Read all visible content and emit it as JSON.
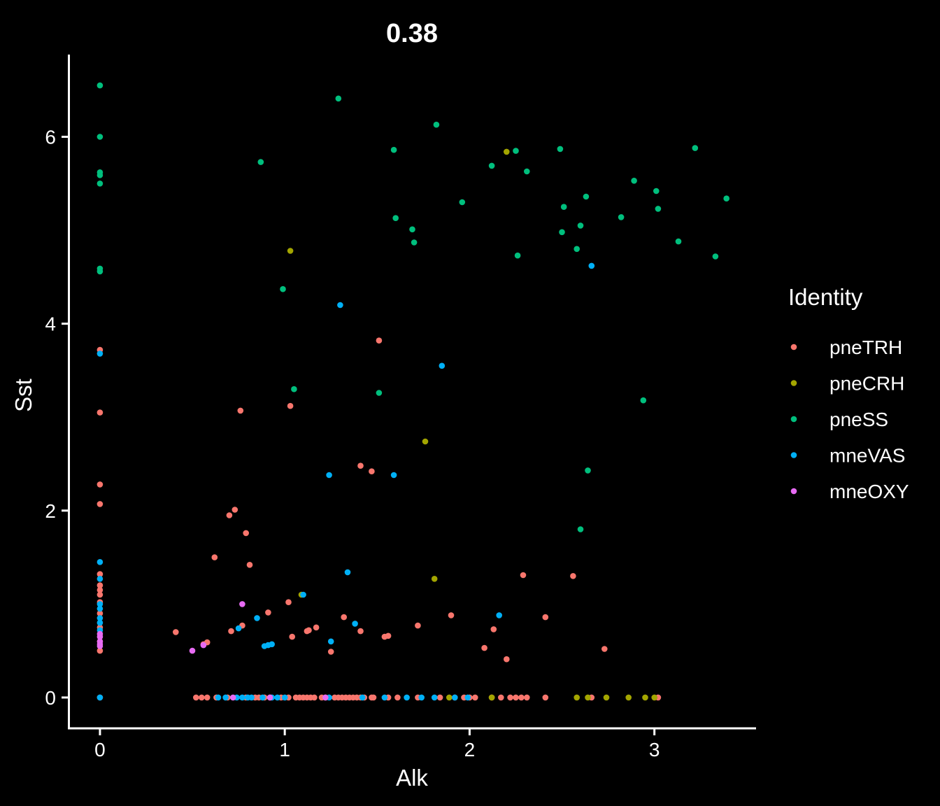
{
  "chart_data": {
    "type": "scatter",
    "title": "0.38",
    "xlabel": "Alk",
    "ylabel": "Sst",
    "xlim": [
      -0.17,
      3.55
    ],
    "ylim": [
      -0.33,
      6.88
    ],
    "xticks": [
      0,
      1,
      2,
      3
    ],
    "yticks": [
      0,
      2,
      4,
      6
    ],
    "grid": false,
    "legend": {
      "title": "Identity",
      "position": "right"
    },
    "series": [
      {
        "name": "pneTRH",
        "color": "#F8766D",
        "points": [
          [
            0,
            3.72
          ],
          [
            0,
            3.05
          ],
          [
            0,
            2.28
          ],
          [
            0,
            2.07
          ],
          [
            0,
            1.32
          ],
          [
            0,
            1.2
          ],
          [
            0,
            1.15
          ],
          [
            0,
            1.1
          ],
          [
            0,
            1.02
          ],
          [
            0,
            0.9
          ],
          [
            0,
            0.75
          ],
          [
            0,
            0.6
          ],
          [
            0,
            0.5
          ],
          [
            0,
            0
          ],
          [
            0.41,
            0.7
          ],
          [
            0.56,
            0.57
          ],
          [
            0.58,
            0.59
          ],
          [
            0.62,
            1.5
          ],
          [
            0.7,
            1.95
          ],
          [
            0.71,
            0.71
          ],
          [
            0.73,
            2.01
          ],
          [
            0.76,
            3.07
          ],
          [
            0.77,
            0.77
          ],
          [
            0.79,
            1.76
          ],
          [
            0.81,
            1.42
          ],
          [
            0.91,
            0.91
          ],
          [
            1.02,
            1.02
          ],
          [
            1.03,
            3.12
          ],
          [
            1.04,
            0.65
          ],
          [
            1.12,
            0.71
          ],
          [
            1.13,
            0.72
          ],
          [
            1.17,
            0.75
          ],
          [
            1.25,
            0.49
          ],
          [
            1.32,
            0.86
          ],
          [
            1.41,
            0.71
          ],
          [
            1.41,
            2.48
          ],
          [
            1.47,
            2.42
          ],
          [
            1.51,
            3.82
          ],
          [
            1.54,
            0.65
          ],
          [
            1.56,
            0.66
          ],
          [
            1.72,
            0.77
          ],
          [
            1.9,
            0.88
          ],
          [
            2.08,
            0.53
          ],
          [
            2.13,
            0.73
          ],
          [
            2.2,
            0.41
          ],
          [
            2.29,
            1.31
          ],
          [
            2.41,
            0.86
          ],
          [
            2.56,
            1.3
          ],
          [
            2.73,
            0.52
          ],
          [
            0.52,
            0
          ],
          [
            0.55,
            0
          ],
          [
            0.58,
            0
          ],
          [
            0.63,
            0
          ],
          [
            0.69,
            0
          ],
          [
            0.79,
            0
          ],
          [
            0.84,
            0
          ],
          [
            0.86,
            0
          ],
          [
            0.89,
            0
          ],
          [
            0.92,
            0
          ],
          [
            0.98,
            0
          ],
          [
            1.02,
            0
          ],
          [
            1.06,
            0
          ],
          [
            1.08,
            0
          ],
          [
            1.1,
            0
          ],
          [
            1.12,
            0
          ],
          [
            1.14,
            0
          ],
          [
            1.16,
            0
          ],
          [
            1.2,
            0
          ],
          [
            1.22,
            0
          ],
          [
            1.27,
            0
          ],
          [
            1.29,
            0
          ],
          [
            1.31,
            0
          ],
          [
            1.33,
            0
          ],
          [
            1.35,
            0
          ],
          [
            1.37,
            0
          ],
          [
            1.39,
            0
          ],
          [
            1.41,
            0
          ],
          [
            1.43,
            0
          ],
          [
            1.47,
            0
          ],
          [
            1.48,
            0
          ],
          [
            1.56,
            0
          ],
          [
            1.61,
            0
          ],
          [
            1.72,
            0
          ],
          [
            1.84,
            0
          ],
          [
            1.92,
            0
          ],
          [
            1.97,
            0
          ],
          [
            2.0,
            0
          ],
          [
            2.03,
            0
          ],
          [
            2.12,
            0
          ],
          [
            2.17,
            0
          ],
          [
            2.22,
            0
          ],
          [
            2.25,
            0
          ],
          [
            2.28,
            0
          ],
          [
            2.31,
            0
          ],
          [
            2.41,
            0
          ],
          [
            2.66,
            0
          ],
          [
            3.02,
            0
          ]
        ]
      },
      {
        "name": "pneCRH",
        "color": "#A3A500",
        "points": [
          [
            1.03,
            4.78
          ],
          [
            1.09,
            1.1
          ],
          [
            1.76,
            2.74
          ],
          [
            1.81,
            1.27
          ],
          [
            2.2,
            5.84
          ],
          [
            1.89,
            0
          ],
          [
            2.12,
            0
          ],
          [
            2.58,
            0
          ],
          [
            2.64,
            0
          ],
          [
            2.74,
            0
          ],
          [
            2.86,
            0
          ],
          [
            2.95,
            0
          ],
          [
            3.0,
            0
          ]
        ]
      },
      {
        "name": "pneSS",
        "color": "#00BF7D",
        "points": [
          [
            0,
            6.55
          ],
          [
            0,
            6.0
          ],
          [
            0,
            5.62
          ],
          [
            0,
            5.59
          ],
          [
            0,
            5.5
          ],
          [
            0,
            4.59
          ],
          [
            0,
            4.56
          ],
          [
            0.87,
            5.73
          ],
          [
            0.99,
            4.37
          ],
          [
            1.05,
            3.3
          ],
          [
            1.29,
            6.41
          ],
          [
            1.51,
            3.26
          ],
          [
            1.59,
            5.86
          ],
          [
            1.6,
            5.13
          ],
          [
            1.69,
            5.01
          ],
          [
            1.7,
            4.87
          ],
          [
            1.82,
            6.13
          ],
          [
            1.96,
            5.3
          ],
          [
            2.12,
            5.69
          ],
          [
            2.25,
            5.85
          ],
          [
            2.26,
            4.73
          ],
          [
            2.31,
            5.63
          ],
          [
            2.49,
            5.87
          ],
          [
            2.5,
            4.98
          ],
          [
            2.51,
            5.25
          ],
          [
            2.58,
            4.8
          ],
          [
            2.6,
            5.05
          ],
          [
            2.6,
            1.8
          ],
          [
            2.63,
            5.36
          ],
          [
            2.64,
            2.43
          ],
          [
            2.82,
            5.14
          ],
          [
            2.89,
            5.53
          ],
          [
            2.94,
            3.18
          ],
          [
            3.01,
            5.42
          ],
          [
            3.02,
            5.23
          ],
          [
            3.13,
            4.88
          ],
          [
            3.22,
            5.88
          ],
          [
            3.33,
            4.72
          ],
          [
            3.39,
            5.34
          ]
        ]
      },
      {
        "name": "mneVAS",
        "color": "#00B0F6",
        "points": [
          [
            0,
            3.68
          ],
          [
            0,
            1.45
          ],
          [
            0,
            1.27
          ],
          [
            0,
            1.0
          ],
          [
            0,
            0.95
          ],
          [
            0,
            0.85
          ],
          [
            0,
            0.8
          ],
          [
            0,
            0.72
          ],
          [
            0,
            0
          ],
          [
            0.75,
            0.74
          ],
          [
            0.85,
            0.85
          ],
          [
            0.89,
            0.55
          ],
          [
            0.91,
            0.56
          ],
          [
            0.93,
            0.57
          ],
          [
            1.1,
            1.1
          ],
          [
            1.24,
            2.38
          ],
          [
            1.25,
            0.6
          ],
          [
            1.3,
            4.2
          ],
          [
            1.34,
            1.34
          ],
          [
            1.38,
            0.79
          ],
          [
            1.59,
            2.38
          ],
          [
            1.85,
            3.55
          ],
          [
            2.16,
            0.88
          ],
          [
            2.66,
            4.62
          ],
          [
            0.64,
            0
          ],
          [
            0.68,
            0
          ],
          [
            0.74,
            0
          ],
          [
            0.77,
            0
          ],
          [
            0.8,
            0
          ],
          [
            0.82,
            0
          ],
          [
            0.88,
            0
          ],
          [
            0.93,
            0
          ],
          [
            0.96,
            0
          ],
          [
            1.0,
            0
          ],
          [
            1.24,
            0
          ],
          [
            1.42,
            0
          ],
          [
            1.54,
            0
          ],
          [
            1.66,
            0
          ],
          [
            1.74,
            0
          ],
          [
            1.81,
            0
          ],
          [
            1.92,
            0
          ],
          [
            1.99,
            0
          ]
        ]
      },
      {
        "name": "mneOXY",
        "color": "#E76BF3",
        "points": [
          [
            0,
            0.68
          ],
          [
            0,
            0.65
          ],
          [
            0,
            0.6
          ],
          [
            0,
            0.57
          ],
          [
            0,
            0.55
          ],
          [
            0.5,
            0.5
          ],
          [
            0.56,
            0.56
          ],
          [
            0.77,
            1.0
          ],
          [
            0.72,
            0
          ],
          [
            0.92,
            0
          ],
          [
            1.22,
            0
          ]
        ]
      }
    ]
  }
}
